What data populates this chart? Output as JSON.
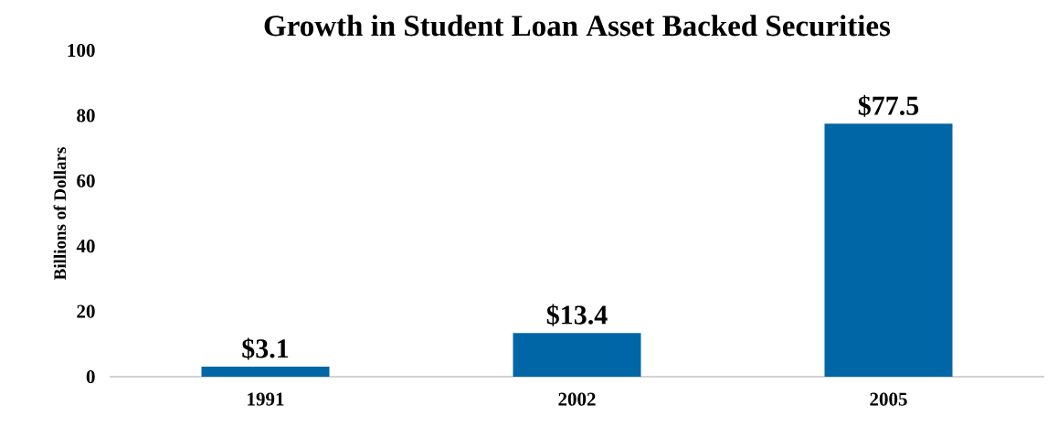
{
  "chart_data": {
    "type": "bar",
    "title": "Growth in Student Loan Asset Backed Securities",
    "ylabel": "Billions of Dollars",
    "categories": [
      "1991",
      "2002",
      "2005"
    ],
    "values": [
      3.1,
      13.4,
      77.5
    ],
    "value_labels": [
      "$3.1",
      "$13.4",
      "$77.5"
    ],
    "color": "#0066a6",
    "ylim": [
      0,
      100
    ],
    "yticks": [
      0,
      20,
      40,
      60,
      80,
      100
    ]
  }
}
